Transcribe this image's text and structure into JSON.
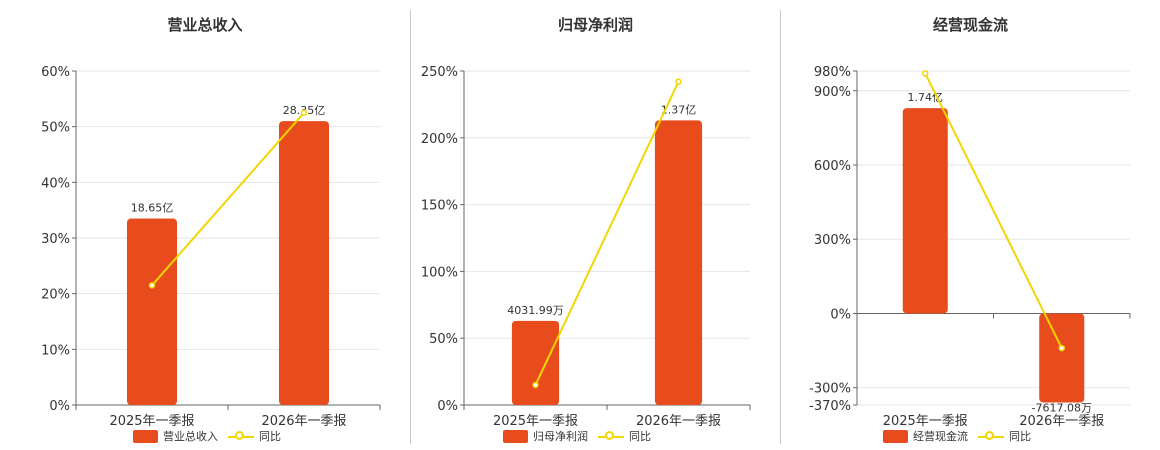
{
  "legend_line_label": "同比",
  "colors": {
    "bar": "#e84c1c",
    "line": "#f2d600"
  },
  "chart_data": [
    {
      "type": "bar",
      "title": "营业总收入",
      "categories": [
        "2025年一季报",
        "2026年一季报"
      ],
      "bar_label": "营业总收入",
      "bar_text": [
        "18.65亿",
        "28.35亿"
      ],
      "bar_values_pct": [
        33.5,
        51
      ],
      "line_values": [
        21.5,
        52.5
      ],
      "yticks": [
        "60%",
        "50%",
        "40%",
        "30%",
        "20%",
        "10%",
        "0%"
      ],
      "ylim": [
        0,
        60
      ]
    },
    {
      "type": "bar",
      "title": "归母净利润",
      "categories": [
        "2025年一季报",
        "2026年一季报"
      ],
      "bar_label": "归母净利润",
      "bar_text": [
        "4031.99万",
        "1.37亿"
      ],
      "bar_values_pct": [
        63,
        213
      ],
      "line_values": [
        15,
        242
      ],
      "yticks": [
        "250%",
        "200%",
        "150%",
        "100%",
        "50%",
        "0%"
      ],
      "ylim": [
        0,
        250
      ]
    },
    {
      "type": "bar",
      "title": "经营现金流",
      "categories": [
        "2025年一季报",
        "2026年一季报"
      ],
      "bar_label": "经营现金流",
      "bar_text": [
        "1.74亿",
        "-7617.08万"
      ],
      "bar_values_pct": [
        830,
        -360
      ],
      "line_values": [
        970,
        -140
      ],
      "yticks": [
        "980%",
        "900%",
        "600%",
        "300%",
        "0%",
        "-300%",
        "-370%"
      ],
      "ytick_values": [
        980,
        900,
        600,
        300,
        0,
        -300,
        -370
      ],
      "ylim": [
        -370,
        980
      ]
    }
  ]
}
